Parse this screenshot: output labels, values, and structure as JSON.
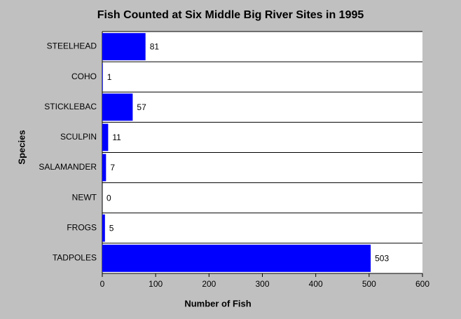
{
  "chart_data": {
    "type": "barh",
    "title": "Fish Counted at Six Middle Big River Sites in 1995",
    "x_label": "Number of Fish",
    "y_label": "Species",
    "categories": [
      "STEELHEAD",
      "COHO",
      "STICKLEBAC",
      "SCULPIN",
      "SALAMANDER",
      "NEWT",
      "FROGS",
      "TADPOLES"
    ],
    "values": [
      81,
      1,
      57,
      11,
      7,
      0,
      5,
      503
    ],
    "color": "#0000ff",
    "xlim": [
      0,
      600
    ],
    "xticks": [
      0,
      100,
      200,
      300,
      400,
      500,
      600
    ]
  }
}
